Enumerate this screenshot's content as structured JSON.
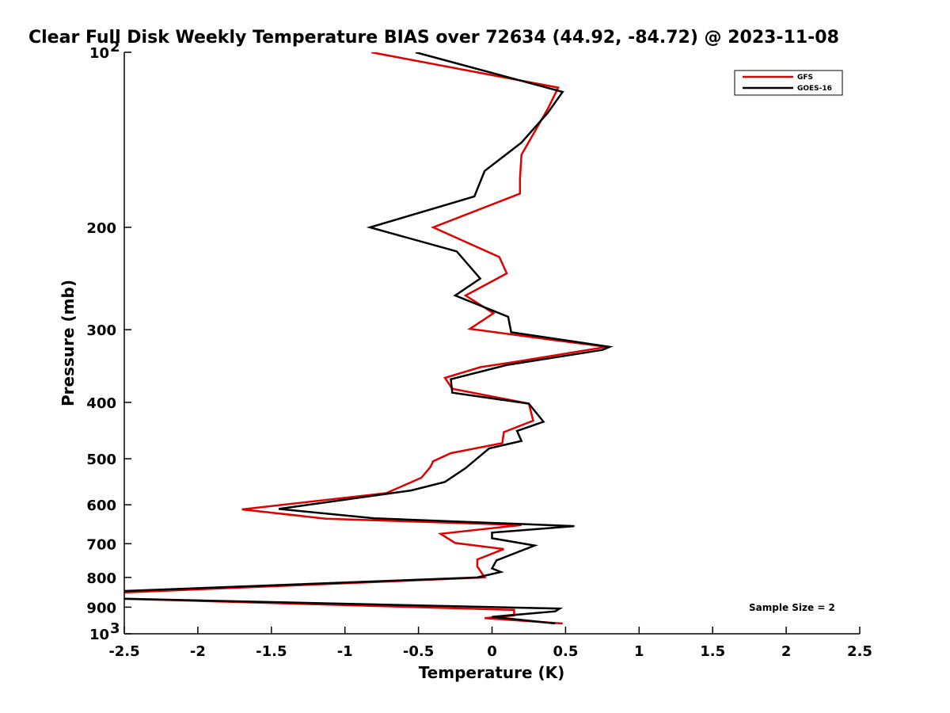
{
  "chart_data": {
    "type": "line",
    "title": "Clear Full Disk Weekly Temperature BIAS over 72634 (44.92, -84.72) @ 2023-11-08",
    "xlabel": "Temperature (K)",
    "ylabel": "Pressure (mb)",
    "xlim": [
      -2.5,
      2.5
    ],
    "ylim": [
      100,
      1000
    ],
    "y_scale": "log",
    "y_reversed": true,
    "grid": false,
    "legend_position": "top-right",
    "x_ticks": [
      -2.5,
      -2,
      -1.5,
      -1,
      -0.5,
      0,
      0.5,
      1,
      1.5,
      2,
      2.5
    ],
    "x_tick_labels": [
      "-2.5",
      "-2",
      "-1.5",
      "-1",
      "-0.5",
      "0",
      "0.5",
      "1",
      "1.5",
      "2",
      "2.5"
    ],
    "y_ticks": [
      100,
      200,
      300,
      400,
      500,
      600,
      700,
      800,
      900,
      1000
    ],
    "y_tick_labels": [
      {
        "base": "10",
        "exp": "2"
      },
      {
        "base": "200",
        "exp": ""
      },
      {
        "base": "300",
        "exp": ""
      },
      {
        "base": "400",
        "exp": ""
      },
      {
        "base": "500",
        "exp": ""
      },
      {
        "base": "600",
        "exp": ""
      },
      {
        "base": "700",
        "exp": ""
      },
      {
        "base": "800",
        "exp": ""
      },
      {
        "base": "900",
        "exp": ""
      },
      {
        "base": "10",
        "exp": "3"
      }
    ],
    "annotation": "Sample Size = 2",
    "series": [
      {
        "name": "GFS",
        "color": "#e00000",
        "points": [
          [
            -0.82,
            100
          ],
          [
            0.45,
            115
          ],
          [
            0.38,
            125
          ],
          [
            0.2,
            150
          ],
          [
            0.19,
            165
          ],
          [
            0.19,
            175
          ],
          [
            -0.4,
            200
          ],
          [
            0.05,
            225
          ],
          [
            0.1,
            240
          ],
          [
            -0.18,
            262
          ],
          [
            0.01,
            281
          ],
          [
            -0.15,
            299
          ],
          [
            0.4,
            312
          ],
          [
            0.78,
            321
          ],
          [
            0.15,
            341
          ],
          [
            -0.08,
            348
          ],
          [
            -0.32,
            363
          ],
          [
            -0.27,
            379
          ],
          [
            0.25,
            402
          ],
          [
            0.28,
            430
          ],
          [
            0.08,
            450
          ],
          [
            0.07,
            470
          ],
          [
            -0.28,
            489
          ],
          [
            -0.4,
            505
          ],
          [
            -0.42,
            517
          ],
          [
            -0.48,
            539
          ],
          [
            -0.72,
            573
          ],
          [
            -1.7,
            611
          ],
          [
            -1.13,
            634
          ],
          [
            0.2,
            650
          ],
          [
            -0.35,
            673
          ],
          [
            -0.25,
            698
          ],
          [
            0.08,
            715
          ],
          [
            -0.1,
            745
          ],
          [
            -0.1,
            766
          ],
          [
            -0.05,
            800
          ],
          [
            -2.55,
            850
          ],
          [
            -2.55,
            870
          ],
          [
            0.15,
            910
          ],
          [
            0.15,
            930
          ],
          [
            -0.05,
            940
          ],
          [
            0.48,
            960
          ]
        ]
      },
      {
        "name": "GOES-16",
        "color": "#000000",
        "points": [
          [
            -0.52,
            100
          ],
          [
            0.48,
            117
          ],
          [
            0.38,
            127
          ],
          [
            0.2,
            143
          ],
          [
            -0.05,
            160
          ],
          [
            -0.12,
            177
          ],
          [
            -0.83,
            200
          ],
          [
            -0.24,
            220
          ],
          [
            -0.08,
            245
          ],
          [
            -0.25,
            262
          ],
          [
            0.11,
            285
          ],
          [
            0.13,
            303
          ],
          [
            0.8,
            321
          ],
          [
            0.75,
            325
          ],
          [
            0.1,
            345
          ],
          [
            -0.28,
            365
          ],
          [
            -0.27,
            385
          ],
          [
            0.25,
            402
          ],
          [
            0.35,
            432
          ],
          [
            0.17,
            448
          ],
          [
            0.2,
            466
          ],
          [
            -0.02,
            480
          ],
          [
            -0.18,
            519
          ],
          [
            -0.32,
            548
          ],
          [
            -0.55,
            567
          ],
          [
            -1.45,
            610
          ],
          [
            -0.8,
            633
          ],
          [
            0.56,
            653
          ],
          [
            0.0,
            670
          ],
          [
            0.0,
            685
          ],
          [
            0.29,
            705
          ],
          [
            0.03,
            748
          ],
          [
            0.0,
            772
          ],
          [
            0.06,
            783
          ],
          [
            -0.1,
            800
          ],
          [
            -2.55,
            845
          ],
          [
            -2.55,
            870
          ],
          [
            0.46,
            905
          ],
          [
            0.43,
            915
          ],
          [
            0.0,
            935
          ],
          [
            0.43,
            960
          ]
        ]
      }
    ]
  }
}
